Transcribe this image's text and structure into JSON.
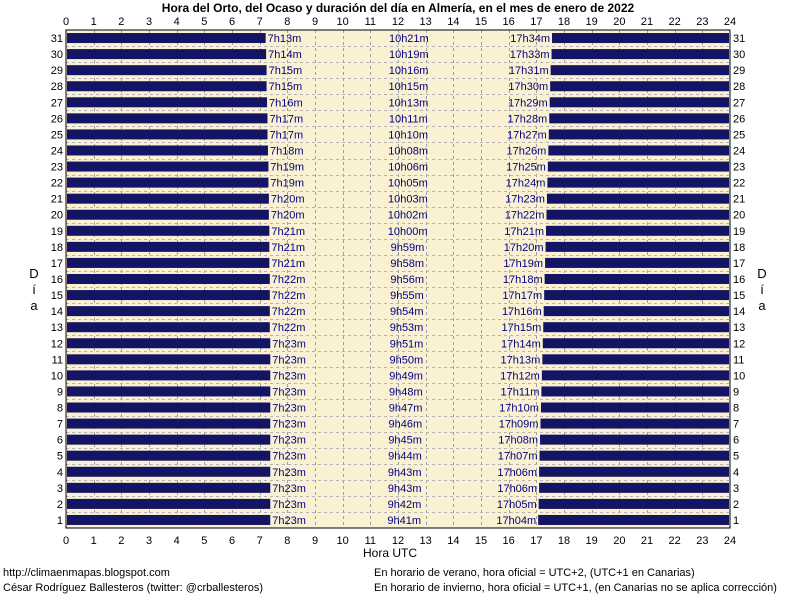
{
  "chart_data": {
    "type": "bar",
    "title": "Hora del Orto, del Ocaso y duración del día en Almería, en el mes de enero de 2022",
    "xlabel": "Hora UTC",
    "ylabel": "Día",
    "xlim": [
      0,
      24
    ],
    "x_ticks": [
      "0",
      "1",
      "2",
      "3",
      "4",
      "5",
      "6",
      "7",
      "8",
      "9",
      "10",
      "11",
      "12",
      "13",
      "14",
      "15",
      "16",
      "17",
      "18",
      "19",
      "20",
      "21",
      "22",
      "23",
      "24"
    ],
    "grid": true,
    "colors": {
      "night": "#141464",
      "day": "#faf0d2",
      "text": "#000080"
    },
    "series": [
      {
        "day": 1,
        "sunrise": "7h23m",
        "daylength": "9h41m",
        "sunset": "17h04m"
      },
      {
        "day": 2,
        "sunrise": "7h23m",
        "daylength": "9h42m",
        "sunset": "17h05m"
      },
      {
        "day": 3,
        "sunrise": "7h23m",
        "daylength": "9h43m",
        "sunset": "17h06m"
      },
      {
        "day": 4,
        "sunrise": "7h23m",
        "daylength": "9h43m",
        "sunset": "17h06m"
      },
      {
        "day": 5,
        "sunrise": "7h23m",
        "daylength": "9h44m",
        "sunset": "17h07m"
      },
      {
        "day": 6,
        "sunrise": "7h23m",
        "daylength": "9h45m",
        "sunset": "17h08m"
      },
      {
        "day": 7,
        "sunrise": "7h23m",
        "daylength": "9h46m",
        "sunset": "17h09m"
      },
      {
        "day": 8,
        "sunrise": "7h23m",
        "daylength": "9h47m",
        "sunset": "17h10m"
      },
      {
        "day": 9,
        "sunrise": "7h23m",
        "daylength": "9h48m",
        "sunset": "17h11m"
      },
      {
        "day": 10,
        "sunrise": "7h23m",
        "daylength": "9h49m",
        "sunset": "17h12m"
      },
      {
        "day": 11,
        "sunrise": "7h23m",
        "daylength": "9h50m",
        "sunset": "17h13m"
      },
      {
        "day": 12,
        "sunrise": "7h23m",
        "daylength": "9h51m",
        "sunset": "17h14m"
      },
      {
        "day": 13,
        "sunrise": "7h22m",
        "daylength": "9h53m",
        "sunset": "17h15m"
      },
      {
        "day": 14,
        "sunrise": "7h22m",
        "daylength": "9h54m",
        "sunset": "17h16m"
      },
      {
        "day": 15,
        "sunrise": "7h22m",
        "daylength": "9h55m",
        "sunset": "17h17m"
      },
      {
        "day": 16,
        "sunrise": "7h22m",
        "daylength": "9h56m",
        "sunset": "17h18m"
      },
      {
        "day": 17,
        "sunrise": "7h21m",
        "daylength": "9h58m",
        "sunset": "17h19m"
      },
      {
        "day": 18,
        "sunrise": "7h21m",
        "daylength": "9h59m",
        "sunset": "17h20m"
      },
      {
        "day": 19,
        "sunrise": "7h21m",
        "daylength": "10h00m",
        "sunset": "17h21m"
      },
      {
        "day": 20,
        "sunrise": "7h20m",
        "daylength": "10h02m",
        "sunset": "17h22m"
      },
      {
        "day": 21,
        "sunrise": "7h20m",
        "daylength": "10h03m",
        "sunset": "17h23m"
      },
      {
        "day": 22,
        "sunrise": "7h19m",
        "daylength": "10h05m",
        "sunset": "17h24m"
      },
      {
        "day": 23,
        "sunrise": "7h19m",
        "daylength": "10h06m",
        "sunset": "17h25m"
      },
      {
        "day": 24,
        "sunrise": "7h18m",
        "daylength": "10h08m",
        "sunset": "17h26m"
      },
      {
        "day": 25,
        "sunrise": "7h17m",
        "daylength": "10h10m",
        "sunset": "17h27m"
      },
      {
        "day": 26,
        "sunrise": "7h17m",
        "daylength": "10h11m",
        "sunset": "17h28m"
      },
      {
        "day": 27,
        "sunrise": "7h16m",
        "daylength": "10h13m",
        "sunset": "17h29m"
      },
      {
        "day": 28,
        "sunrise": "7h15m",
        "daylength": "10h15m",
        "sunset": "17h30m"
      },
      {
        "day": 29,
        "sunrise": "7h15m",
        "daylength": "10h16m",
        "sunset": "17h31m"
      },
      {
        "day": 30,
        "sunrise": "7h14m",
        "daylength": "10h19m",
        "sunset": "17h33m"
      },
      {
        "day": 31,
        "sunrise": "7h13m",
        "daylength": "10h21m",
        "sunset": "17h34m"
      }
    ]
  },
  "footer": {
    "url": "http://climaenmapas.blogspot.com",
    "author": "César Rodríguez Ballesteros (twitter: @crballesteros)",
    "note_summer": "En horario de verano, hora oficial = UTC+2, (UTC+1 en Canarias)",
    "note_winter": "En horario de invierno, hora oficial = UTC+1, (en Canarias no se aplica corrección)"
  }
}
